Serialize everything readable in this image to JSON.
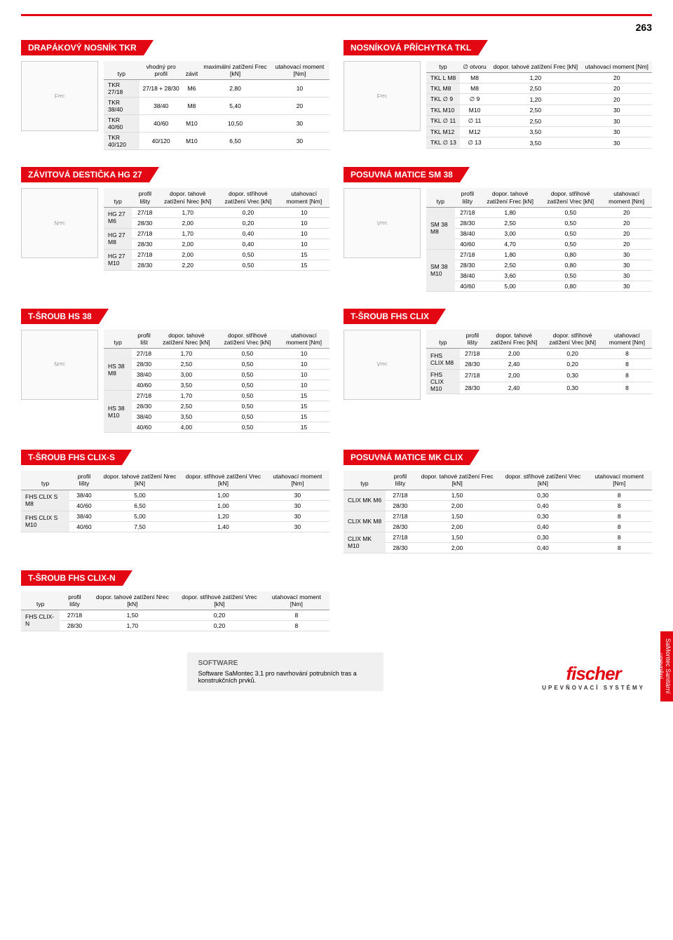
{
  "page_number": "263",
  "side_tab": "SaMontec\nSanitární upevnění",
  "sections": {
    "tkr": {
      "title": "DRAPÁKOVÝ NOSNÍK TKR",
      "img": "Frec",
      "cols": [
        "typ",
        "vhodný pro profil",
        "závit",
        "maximální zatížení Frec [kN]",
        "utahovací moment [Nm]"
      ],
      "rows": [
        [
          "TKR 27/18",
          "27/18 + 28/30",
          "M6",
          "2,80",
          "10"
        ],
        [
          "TKR 38/40",
          "38/40",
          "M8",
          "5,40",
          "20"
        ],
        [
          "TKR 40/60",
          "40/60",
          "M10",
          "10,50",
          "30"
        ],
        [
          "TKR 40/120",
          "40/120",
          "M10",
          "6,50",
          "30"
        ]
      ]
    },
    "tkl": {
      "title": "NOSNÍKOVÁ PŘÍCHYTKA TKL",
      "img": "Frec",
      "cols": [
        "typ",
        "∅ otvoru",
        "dopor. tahové zatížení Frec [kN]",
        "utahovací moment [Nm]"
      ],
      "rows": [
        [
          "TKL L M8",
          "M8",
          "1,20",
          "20"
        ],
        [
          "TKL M8",
          "M8",
          "2,50",
          "20"
        ],
        [
          "TKL ∅ 9",
          "∅ 9",
          "1,20",
          "20"
        ],
        [
          "TKL M10",
          "M10",
          "2,50",
          "30"
        ],
        [
          "TKL ∅ 11",
          "∅ 11",
          "2,50",
          "30"
        ],
        [
          "TKL M12",
          "M12",
          "3,50",
          "30"
        ],
        [
          "TKL ∅ 13",
          "∅ 13",
          "3,50",
          "30"
        ]
      ]
    },
    "hg27": {
      "title": "ZÁVITOVÁ DESTIČKA HG 27",
      "img": "Nrec",
      "cols": [
        "typ",
        "profil lišty",
        "dopor. tahové zatížení Nrec [kN]",
        "dopor. střihové zatížení Vrec [kN]",
        "utahovací moment [Nm]"
      ],
      "grouped_rows": [
        {
          "type": "HG 27 M6",
          "rows": [
            [
              "27/18",
              "1,70",
              "0,20",
              "10"
            ],
            [
              "28/30",
              "2,00",
              "0,20",
              "10"
            ]
          ]
        },
        {
          "type": "HG 27 M8",
          "rows": [
            [
              "27/18",
              "1,70",
              "0,40",
              "10"
            ],
            [
              "28/30",
              "2,00",
              "0,40",
              "10"
            ]
          ]
        },
        {
          "type": "HG 27 M10",
          "rows": [
            [
              "27/18",
              "2,00",
              "0,50",
              "15"
            ],
            [
              "28/30",
              "2,20",
              "0,50",
              "15"
            ]
          ]
        }
      ]
    },
    "sm38": {
      "title": "POSUVNÁ MATICE SM 38",
      "img": "Vrec",
      "cols": [
        "typ",
        "profil lišty",
        "dopor. tahové zatížení Frec [kN]",
        "dopor. střihové zatížení Vrec [kN]",
        "utahovací moment [Nm]"
      ],
      "grouped_rows": [
        {
          "type": "SM 38 M8",
          "rows": [
            [
              "27/18",
              "1,80",
              "0,50",
              "20"
            ],
            [
              "28/30",
              "2,50",
              "0,50",
              "20"
            ],
            [
              "38/40",
              "3,00",
              "0,50",
              "20"
            ],
            [
              "40/60",
              "4,70",
              "0,50",
              "20"
            ]
          ]
        },
        {
          "type": "SM 38 M10",
          "rows": [
            [
              "27/18",
              "1,80",
              "0,80",
              "30"
            ],
            [
              "28/30",
              "2,50",
              "0,80",
              "30"
            ],
            [
              "38/40",
              "3,60",
              "0,50",
              "30"
            ],
            [
              "40/60",
              "5,00",
              "0,80",
              "30"
            ]
          ]
        }
      ]
    },
    "hs38": {
      "title": "T-ŠROUB HS 38",
      "img": "Nrec",
      "cols": [
        "typ",
        "profil lišt",
        "dopor. tahové zatížení Nrec [kN]",
        "dopor. střihové zatížení Vrec [kN]",
        "utahovací moment [Nm]"
      ],
      "grouped_rows": [
        {
          "type": "HS 38 M8",
          "rows": [
            [
              "27/18",
              "1,70",
              "0,50",
              "10"
            ],
            [
              "28/30",
              "2,50",
              "0,50",
              "10"
            ],
            [
              "38/40",
              "3,00",
              "0,50",
              "10"
            ],
            [
              "40/60",
              "3,50",
              "0,50",
              "10"
            ]
          ]
        },
        {
          "type": "HS 38 M10",
          "rows": [
            [
              "27/18",
              "1,70",
              "0,50",
              "15"
            ],
            [
              "28/30",
              "2,50",
              "0,50",
              "15"
            ],
            [
              "38/40",
              "3,50",
              "0,50",
              "15"
            ],
            [
              "40/60",
              "4,00",
              "0,50",
              "15"
            ]
          ]
        }
      ]
    },
    "fhsclix": {
      "title": "T-ŠROUB FHS CLIX",
      "img": "Vrec",
      "cols": [
        "typ",
        "profil lišty",
        "dopor. tahové zatížení Frec [kN]",
        "dopor. střihové zatížení Vrec [kN]",
        "utahovací moment [Nm]"
      ],
      "grouped_rows": [
        {
          "type": "FHS CLIX M8",
          "rows": [
            [
              "27/18",
              "2,00",
              "0,20",
              "8"
            ],
            [
              "28/30",
              "2,40",
              "0,20",
              "8"
            ]
          ]
        },
        {
          "type": "FHS CLIX M10",
          "rows": [
            [
              "27/18",
              "2,00",
              "0,30",
              "8"
            ],
            [
              "28/30",
              "2,40",
              "0,30",
              "8"
            ]
          ]
        }
      ]
    },
    "fhsclixs": {
      "title": "T-ŠROUB FHS CLIX-S",
      "cols": [
        "typ",
        "profil lišty",
        "dopor. tahové zatížení Nrec [kN]",
        "dopor. střihové zatížení Vrec [kN]",
        "utahovací moment [Nm]"
      ],
      "grouped_rows": [
        {
          "type": "FHS CLIX S M8",
          "rows": [
            [
              "38/40",
              "5,00",
              "1,00",
              "30"
            ],
            [
              "40/60",
              "6,50",
              "1,00",
              "30"
            ]
          ]
        },
        {
          "type": "FHS CLIX S M10",
          "rows": [
            [
              "38/40",
              "5,00",
              "1,20",
              "30"
            ],
            [
              "40/60",
              "7,50",
              "1,40",
              "30"
            ]
          ]
        }
      ]
    },
    "mkclix": {
      "title": "POSUVNÁ MATICE MK CLIX",
      "cols": [
        "typ",
        "profil lišty",
        "dopor. tahové zatížení Frec [kN]",
        "dopor. střihové zatížení Vrec [kN]",
        "utahovací moment [Nm]"
      ],
      "grouped_rows": [
        {
          "type": "CLIX MK M6",
          "rows": [
            [
              "27/18",
              "1,50",
              "0,30",
              "8"
            ],
            [
              "28/30",
              "2,00",
              "0,40",
              "8"
            ]
          ]
        },
        {
          "type": "CLIX MK M8",
          "rows": [
            [
              "27/18",
              "1,50",
              "0,30",
              "8"
            ],
            [
              "28/30",
              "2,00",
              "0,40",
              "8"
            ]
          ]
        },
        {
          "type": "CLIX MK M10",
          "rows": [
            [
              "27/18",
              "1,50",
              "0,30",
              "8"
            ],
            [
              "28/30",
              "2,00",
              "0,40",
              "8"
            ]
          ]
        }
      ]
    },
    "fhsclixn": {
      "title": "T-ŠROUB FHS CLIX-N",
      "cols": [
        "typ",
        "profil lišty",
        "dopor. tahové zatížení Nrec [kN]",
        "dopor. střihové zatížení Vrec [kN]",
        "utahovací moment [Nm]"
      ],
      "grouped_rows": [
        {
          "type": "FHS CLIX-N",
          "rows": [
            [
              "27/18",
              "1,50",
              "0,20",
              "8"
            ],
            [
              "28/30",
              "1,70",
              "0,20",
              "8"
            ]
          ]
        }
      ]
    }
  },
  "software": {
    "heading": "SOFTWARE",
    "text": "Software SaMontec 3.1 pro navrhování potrubních tras a konstrukčních prvků."
  },
  "logo": {
    "name": "fischer",
    "sub": "UPEVŇOVACÍ SYSTÉMY"
  }
}
